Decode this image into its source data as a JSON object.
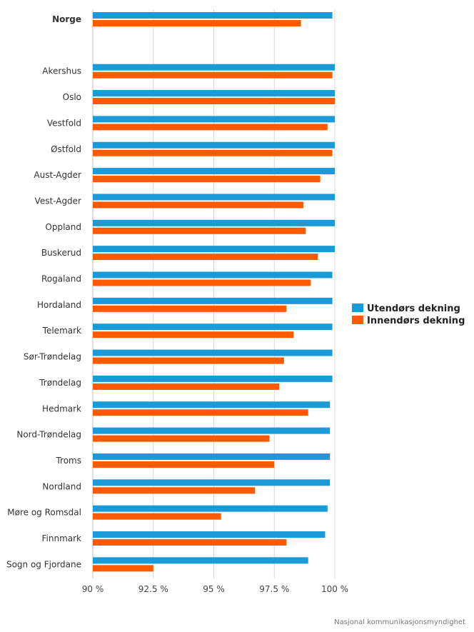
{
  "chart_data": {
    "type": "bar",
    "orientation": "horizontal",
    "title": "",
    "xlabel": "",
    "ylabel": "",
    "xlim": [
      90,
      100
    ],
    "ticks": [
      90,
      92.5,
      95,
      97.5,
      100
    ],
    "tick_labels": [
      "90 %",
      "92.5 %",
      "95 %",
      "97.5 %",
      "100 %"
    ],
    "grid": true,
    "legend_position": "right",
    "categories": [
      "Norge",
      "",
      "Akershus",
      "Oslo",
      "Vestfold",
      "Østfold",
      "Aust-Agder",
      "Vest-Agder",
      "Oppland",
      "Buskerud",
      "Rogaland",
      "Hordaland",
      "Telemark",
      "Sør-Trøndelag",
      "Trøndelag",
      "Hedmark",
      "Nord-Trøndelag",
      "Troms",
      "Nordland",
      "Møre og Romsdal",
      "Finnmark",
      "Sogn og Fjordane"
    ],
    "bold_categories": [
      "Norge"
    ],
    "series": [
      {
        "name": "Utendørs dekning",
        "color": "#1a9bd7",
        "values": [
          99.9,
          null,
          100,
          100,
          100,
          100,
          100,
          100,
          100,
          100,
          99.9,
          99.9,
          99.9,
          99.9,
          99.9,
          99.8,
          99.8,
          99.8,
          99.8,
          99.7,
          99.6,
          98.9
        ]
      },
      {
        "name": "Innendørs dekning",
        "color": "#ff5a00",
        "values": [
          98.6,
          null,
          99.9,
          100,
          99.7,
          99.9,
          99.4,
          98.7,
          98.8,
          99.3,
          99.0,
          98.0,
          98.3,
          97.9,
          97.7,
          98.9,
          97.3,
          97.5,
          96.7,
          95.3,
          98.0,
          92.5
        ]
      }
    ]
  },
  "credit": "Nasjonal kommunikasjonsmyndighet"
}
